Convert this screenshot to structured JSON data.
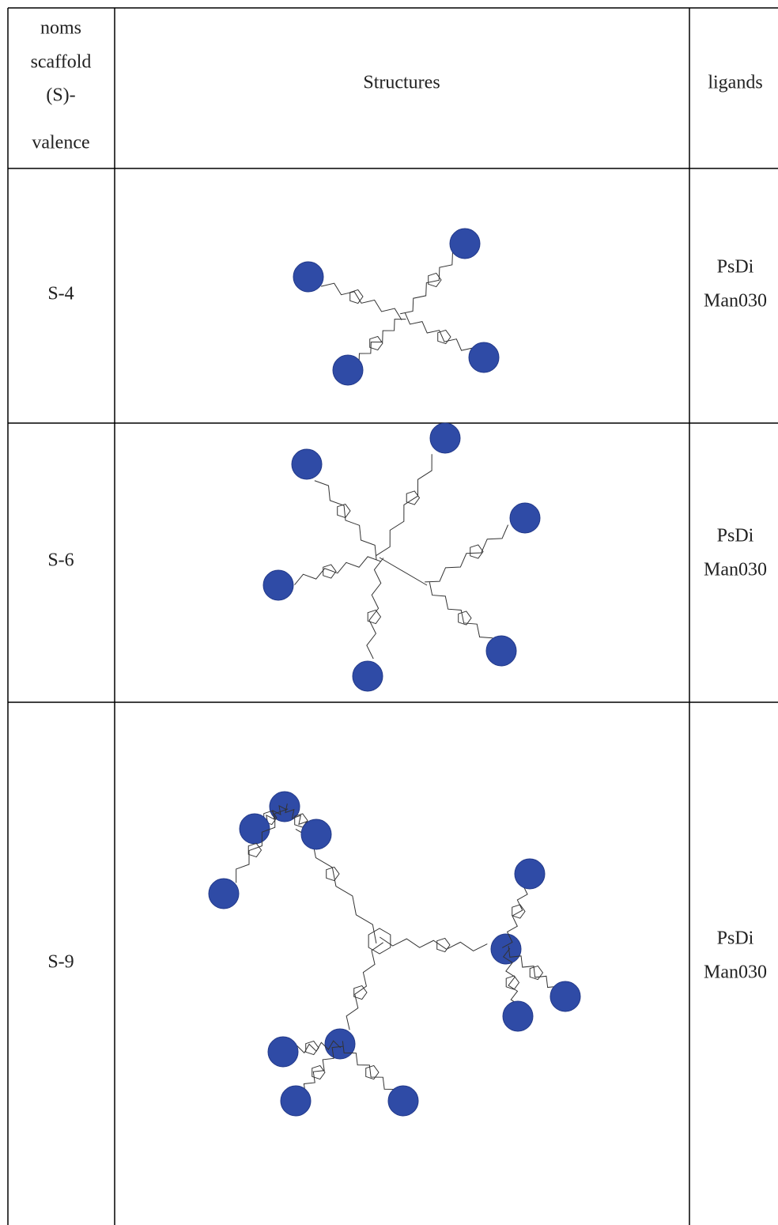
{
  "table": {
    "header": {
      "name": [
        "noms",
        "scaffold",
        "(S)-",
        "valence"
      ],
      "structures": "Structures",
      "ligands": [
        "ligands"
      ]
    },
    "rows": [
      {
        "name": "S-4",
        "ligands": [
          "PsDi",
          "Man030"
        ]
      },
      {
        "name": "S-6",
        "ligands": [
          "PsDi",
          "Man030"
        ]
      },
      {
        "name": "S-9",
        "ligands": [
          "PsDi",
          "Man030"
        ]
      }
    ]
  }
}
